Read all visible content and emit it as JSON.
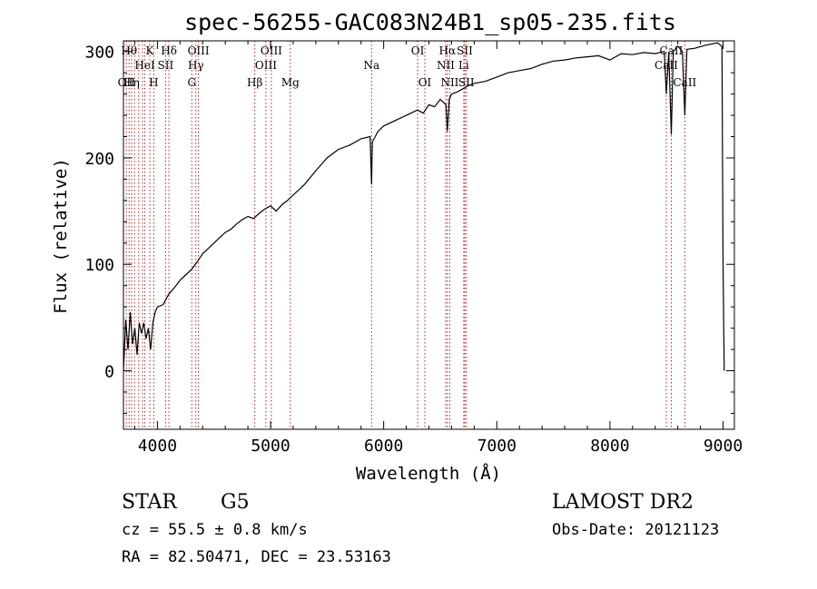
{
  "chart_data": {
    "type": "line",
    "title": "spec-56255-GAC083N24B1_sp05-235.fits",
    "xlabel": "Wavelength (Å)",
    "ylabel": "Flux (relative)",
    "xlim": [
      3700,
      9100
    ],
    "ylim": [
      -55,
      310
    ],
    "x_ticks": [
      4000,
      5000,
      6000,
      7000,
      8000,
      9000
    ],
    "y_ticks": [
      0,
      100,
      200,
      300
    ],
    "grid": false,
    "line_color": "#000000",
    "marker_color": "#b22222",
    "series": [
      {
        "x": [
          3700,
          3720,
          3740,
          3760,
          3780,
          3800,
          3820,
          3840,
          3860,
          3880,
          3900,
          3920,
          3940,
          3960,
          3980,
          4000,
          4050,
          4100,
          4150,
          4200,
          4250,
          4300,
          4350,
          4400,
          4450,
          4500,
          4550,
          4600,
          4650,
          4700,
          4750,
          4800,
          4850,
          4900,
          4950,
          5000,
          5050,
          5100,
          5150,
          5200,
          5300,
          5400,
          5500,
          5600,
          5700,
          5800,
          5880,
          5893,
          5900,
          5950,
          6000,
          6100,
          6200,
          6300,
          6350,
          6400,
          6450,
          6500,
          6550,
          6563,
          6580,
          6600,
          6650,
          6700,
          6750,
          6800,
          6900,
          7000,
          7100,
          7200,
          7300,
          7400,
          7500,
          7600,
          7700,
          7800,
          7900,
          8000,
          8100,
          8200,
          8300,
          8400,
          8480,
          8498,
          8520,
          8542,
          8560,
          8600,
          8640,
          8662,
          8680,
          8750,
          8850,
          8950,
          8990,
          9000,
          9010
        ],
        "y": [
          0,
          48,
          20,
          55,
          25,
          40,
          15,
          45,
          35,
          45,
          30,
          40,
          20,
          45,
          55,
          60,
          62,
          72,
          78,
          85,
          90,
          95,
          102,
          110,
          115,
          120,
          125,
          130,
          133,
          138,
          142,
          145,
          143,
          148,
          152,
          155,
          150,
          156,
          160,
          165,
          175,
          188,
          200,
          208,
          212,
          218,
          220,
          175,
          215,
          225,
          230,
          235,
          240,
          245,
          242,
          250,
          248,
          255,
          250,
          225,
          255,
          260,
          262,
          265,
          268,
          270,
          272,
          276,
          280,
          282,
          284,
          288,
          291,
          292,
          294,
          295,
          296,
          292,
          298,
          297,
          299,
          298,
          300,
          260,
          299,
          222,
          300,
          305,
          300,
          240,
          302,
          303,
          306,
          308,
          305,
          100,
          0
        ]
      }
    ],
    "line_markers": [
      {
        "x": 3726,
        "label": "OII",
        "row": 3
      },
      {
        "x": 3750,
        "label": "Hθ",
        "row": 1
      },
      {
        "x": 3771,
        "label": "Hη",
        "row": 3
      },
      {
        "x": 3798,
        "label": "",
        "row": 0
      },
      {
        "x": 3835,
        "label": "",
        "row": 0
      },
      {
        "x": 3869,
        "label": "",
        "row": 0
      },
      {
        "x": 3889,
        "label": "HeI",
        "row": 2
      },
      {
        "x": 3933,
        "label": "K",
        "row": 1
      },
      {
        "x": 3968,
        "label": "H",
        "row": 3
      },
      {
        "x": 4072,
        "label": "SII",
        "row": 2
      },
      {
        "x": 4102,
        "label": "Hδ",
        "row": 1
      },
      {
        "x": 4304,
        "label": "G",
        "row": 3
      },
      {
        "x": 4340,
        "label": "Hγ",
        "row": 2
      },
      {
        "x": 4363,
        "label": "OIII",
        "row": 1
      },
      {
        "x": 4861,
        "label": "Hβ",
        "row": 3
      },
      {
        "x": 4959,
        "label": "OIII",
        "row": 2
      },
      {
        "x": 5007,
        "label": "OIII",
        "row": 1
      },
      {
        "x": 5175,
        "label": "Mg",
        "row": 3
      },
      {
        "x": 5893,
        "label": "Na",
        "row": 2
      },
      {
        "x": 6300,
        "label": "OI",
        "row": 1
      },
      {
        "x": 6364,
        "label": "OI",
        "row": 3
      },
      {
        "x": 6548,
        "label": "NII",
        "row": 2
      },
      {
        "x": 6563,
        "label": "Hα",
        "row": 1
      },
      {
        "x": 6584,
        "label": "NII",
        "row": 3
      },
      {
        "x": 6708,
        "label": "Li",
        "row": 2
      },
      {
        "x": 6717,
        "label": "SII",
        "row": 1
      },
      {
        "x": 6731,
        "label": "SII",
        "row": 3
      },
      {
        "x": 8498,
        "label": "CaII",
        "row": 2
      },
      {
        "x": 8542,
        "label": "CaII",
        "row": 1
      },
      {
        "x": 8662,
        "label": "CaII",
        "row": 3
      }
    ]
  },
  "info": {
    "object_type": "STAR",
    "subclass": "G5",
    "survey": "LAMOST DR2",
    "redshift": "cz = 55.5 ± 0.8 km/s",
    "obs_date": "Obs-Date: 20121123",
    "coords": "RA =  82.50471, DEC =  23.53163"
  }
}
